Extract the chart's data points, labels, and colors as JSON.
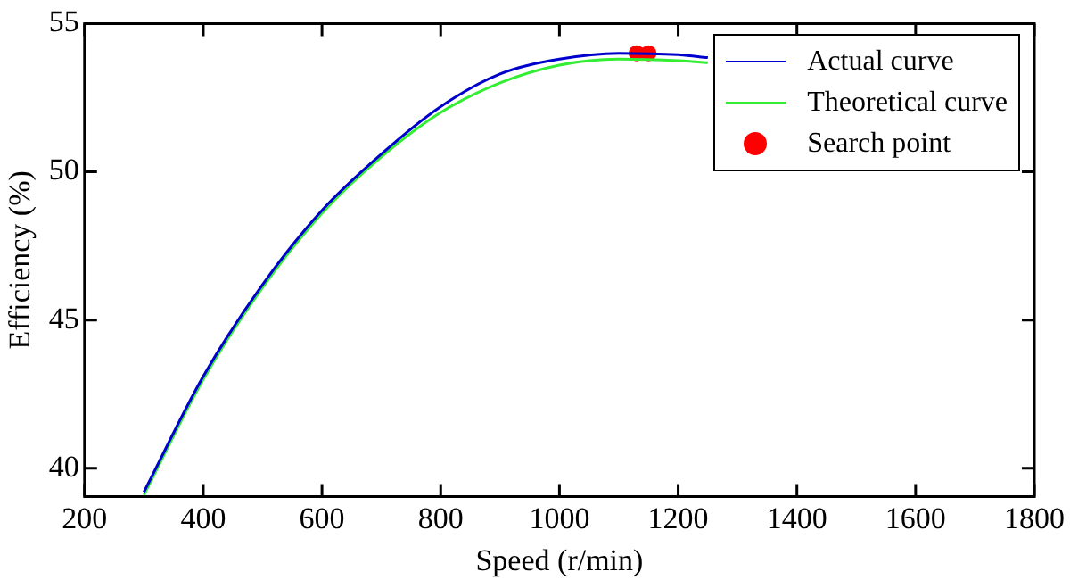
{
  "chart_data": {
    "type": "line",
    "xlabel": "Speed (r/min)",
    "ylabel": "Efficiency (%)",
    "xlim": [
      200,
      1800
    ],
    "xticks": [
      200,
      400,
      600,
      800,
      1000,
      1200,
      1400,
      1600,
      1800
    ],
    "ylim": [
      39.05,
      55
    ],
    "yticks": [
      40,
      45,
      50,
      55
    ],
    "grid": false,
    "legend": "top right",
    "marker": "none",
    "line_style": "solid",
    "series": [
      {
        "name": "Actual curve",
        "color": "#0000cc",
        "x": [
          300,
          400,
          500,
          600,
          700,
          800,
          900,
          1000,
          1100,
          1200,
          1250
        ],
        "values": [
          39.2,
          43.1,
          46.2,
          48.7,
          50.6,
          52.2,
          53.3,
          53.8,
          54.0,
          53.95,
          53.85
        ]
      },
      {
        "name": "Theoretical curve",
        "color": "#33ee33",
        "x": [
          300,
          400,
          500,
          600,
          700,
          800,
          900,
          1000,
          1100,
          1200,
          1250
        ],
        "values": [
          39.1,
          43.0,
          46.1,
          48.6,
          50.5,
          52.0,
          53.0,
          53.6,
          53.8,
          53.75,
          53.68
        ]
      },
      {
        "name": "Search point",
        "type": "scatter",
        "marker": "circle",
        "color": "#ff0000",
        "x": [
          1130,
          1150
        ],
        "values": [
          54.0,
          54.0
        ]
      }
    ]
  }
}
